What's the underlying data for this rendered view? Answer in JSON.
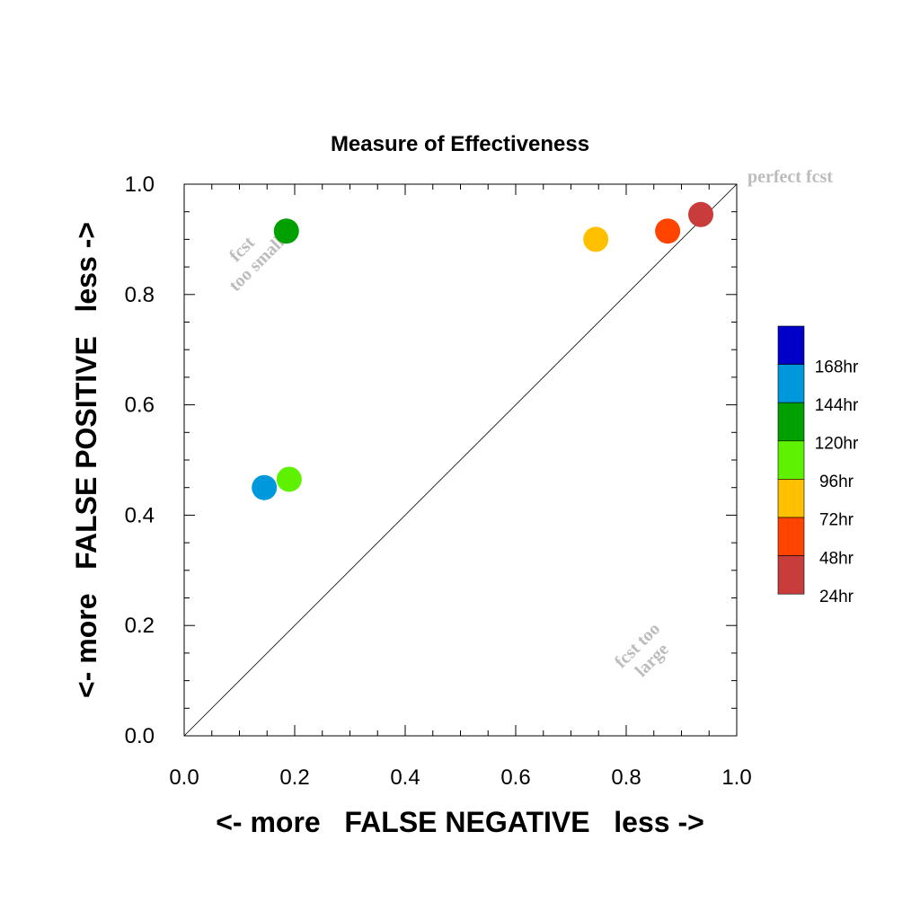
{
  "chart_data": {
    "type": "scatter",
    "title": "Measure of Effectiveness",
    "xlabel": "<- more   FALSE NEGATIVE   less ->",
    "ylabel": "<- more   FALSE POSITIVE   less ->",
    "xlim": [
      0,
      1
    ],
    "ylim": [
      0,
      1
    ],
    "x_ticks": [
      "0.0",
      "0.2",
      "0.4",
      "0.6",
      "0.8",
      "1.0"
    ],
    "y_ticks": [
      "0.0",
      "0.2",
      "0.4",
      "0.6",
      "0.8",
      "1.0"
    ],
    "grid": false,
    "reference_line": "diagonal y = x",
    "annotations": {
      "perfect": "perfect fcst",
      "too_small": [
        "fcst",
        "too small"
      ],
      "too_large": [
        "fcst too",
        "large"
      ]
    },
    "legend_position": "right",
    "series": [
      {
        "name": "168hr",
        "color": "#0000c8",
        "points": []
      },
      {
        "name": "144hr",
        "color": "#0098dc",
        "points": [
          [
            0.145,
            0.45
          ]
        ]
      },
      {
        "name": "120hr",
        "color": "#00a000",
        "points": [
          [
            0.185,
            0.915
          ]
        ]
      },
      {
        "name": "96hr",
        "color": "#5ef200",
        "points": [
          [
            0.19,
            0.465
          ]
        ]
      },
      {
        "name": "72hr",
        "color": "#ffc000",
        "points": [
          [
            0.745,
            0.9
          ]
        ]
      },
      {
        "name": "48hr",
        "color": "#ff4400",
        "points": [
          [
            0.875,
            0.915
          ]
        ]
      },
      {
        "name": "24hr",
        "color": "#c83c3c",
        "points": [
          [
            0.935,
            0.945
          ]
        ]
      }
    ]
  }
}
